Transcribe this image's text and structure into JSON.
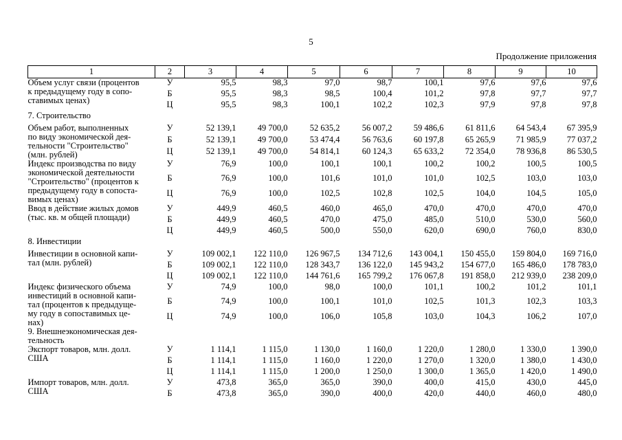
{
  "page": {
    "number": "5",
    "continuation": "Продолжение приложения"
  },
  "table": {
    "column_headers": [
      "1",
      "2",
      "3",
      "4",
      "5",
      "6",
      "7",
      "8",
      "9",
      "10"
    ],
    "rows": [
      {
        "type": "indicator",
        "name_lines": [
          "Объем услуг связи (процентов",
          "к предыдущему году в сопо-",
          "ставимых ценах)"
        ],
        "variants": [
          {
            "label": "У",
            "values": [
              "95,5",
              "98,3",
              "97,0",
              "98,7",
              "100,1",
              "97,6",
              "97,6",
              "97,6"
            ]
          },
          {
            "label": "Б",
            "values": [
              "95,5",
              "98,3",
              "98,5",
              "100,4",
              "101,2",
              "97,8",
              "97,7",
              "97,7"
            ]
          },
          {
            "label": "Ц",
            "values": [
              "95,5",
              "98,3",
              "100,1",
              "102,2",
              "102,3",
              "97,9",
              "97,8",
              "97,8"
            ]
          }
        ]
      },
      {
        "type": "section",
        "name_lines": [
          "7. Строительство"
        ]
      },
      {
        "type": "indicator",
        "name_lines": [
          "Объем работ, выполненных",
          "по виду экономической дея-",
          "тельности \"Строительство\"",
          "(млн. рублей)"
        ],
        "variants": [
          {
            "label": "У",
            "values": [
              "52 139,1",
              "49 700,0",
              "52 635,2",
              "56 007,2",
              "59 486,6",
              "61 811,6",
              "64 543,4",
              "67 395,9"
            ]
          },
          {
            "label": "Б",
            "values": [
              "52 139,1",
              "49 700,0",
              "53 474,4",
              "56 763,6",
              "60 197,8",
              "65 265,9",
              "71 985,9",
              "77 037,2"
            ]
          },
          {
            "label": "Ц",
            "values": [
              "52 139,1",
              "49 700,0",
              "54 814,1",
              "60 124,3",
              "65 633,2",
              "72 354,0",
              "78 936,8",
              "86 530,5"
            ]
          }
        ]
      },
      {
        "type": "indicator",
        "name_lines": [
          "Индекс производства по виду",
          "экономической деятельности",
          "\"Строительство\" (процентов к",
          "предыдущему году в сопоста-",
          "вимых ценах)"
        ],
        "variants": [
          {
            "label": "У",
            "values": [
              "76,9",
              "100,0",
              "100,1",
              "100,1",
              "100,2",
              "100,2",
              "100,5",
              "100,5"
            ]
          },
          {
            "label": "Б",
            "values": [
              "76,9",
              "100,0",
              "101,6",
              "101,0",
              "101,0",
              "102,5",
              "103,0",
              "103,0"
            ]
          },
          {
            "label": "Ц",
            "values": [
              "76,9",
              "100,0",
              "102,5",
              "102,8",
              "102,5",
              "104,0",
              "104,5",
              "105,0"
            ]
          }
        ]
      },
      {
        "type": "indicator",
        "name_lines": [
          "Ввод в действие жилых домов",
          "(тыс. кв. м общей площади)"
        ],
        "variants": [
          {
            "label": "У",
            "values": [
              "449,9",
              "460,5",
              "460,0",
              "465,0",
              "470,0",
              "470,0",
              "470,0",
              "470,0"
            ]
          },
          {
            "label": "Б",
            "values": [
              "449,9",
              "460,5",
              "470,0",
              "475,0",
              "485,0",
              "510,0",
              "530,0",
              "560,0"
            ]
          },
          {
            "label": "Ц",
            "values": [
              "449,9",
              "460,5",
              "500,0",
              "550,0",
              "620,0",
              "690,0",
              "760,0",
              "830,0"
            ]
          }
        ]
      },
      {
        "type": "section",
        "name_lines": [
          "8. Инвестиции"
        ]
      },
      {
        "type": "indicator",
        "name_lines": [
          "Инвестиции в основной капи-",
          "тал (млн. рублей)"
        ],
        "variants": [
          {
            "label": "У",
            "values": [
              "109 002,1",
              "122 110,0",
              "126 967,5",
              "134 712,6",
              "143 004,1",
              "150 455,0",
              "159 804,0",
              "169 716,0"
            ]
          },
          {
            "label": "Б",
            "values": [
              "109 002,1",
              "122 110,0",
              "128 343,7",
              "136 122,0",
              "145 943,2",
              "154 677,0",
              "165 486,0",
              "178 783,0"
            ]
          },
          {
            "label": "Ц",
            "values": [
              "109 002,1",
              "122 110,0",
              "144 761,6",
              "165 799,2",
              "176 067,8",
              "191 858,0",
              "212 939,0",
              "238 209,0"
            ]
          }
        ]
      },
      {
        "type": "indicator",
        "name_lines": [
          "Индекс физического объема",
          "инвестиций в основной капи-",
          "тал (процентов к предыдуще-",
          "му году в сопоставимых це-",
          "нах)"
        ],
        "variants": [
          {
            "label": "У",
            "values": [
              "74,9",
              "100,0",
              "98,0",
              "100,0",
              "101,1",
              "100,2",
              "101,2",
              "101,1"
            ]
          },
          {
            "label": "Б",
            "values": [
              "74,9",
              "100,0",
              "100,1",
              "101,0",
              "102,5",
              "101,3",
              "102,3",
              "103,3"
            ]
          },
          {
            "label": "Ц",
            "values": [
              "74,9",
              "100,0",
              "106,0",
              "105,8",
              "103,0",
              "104,3",
              "106,2",
              "107,0"
            ]
          }
        ]
      },
      {
        "type": "section",
        "name_lines": [
          "9. Внешнеэкономическая дея-",
          "тельность"
        ]
      },
      {
        "type": "indicator",
        "name_lines": [
          "Экспорт товаров, млн. долл.",
          "США"
        ],
        "variants": [
          {
            "label": "У",
            "values": [
              "1 114,1",
              "1 115,0",
              "1 130,0",
              "1 160,0",
              "1 220,0",
              "1 280,0",
              "1 330,0",
              "1 390,0"
            ]
          },
          {
            "label": "Б",
            "values": [
              "1 114,1",
              "1 115,0",
              "1 160,0",
              "1 220,0",
              "1 270,0",
              "1 320,0",
              "1 380,0",
              "1 430,0"
            ]
          },
          {
            "label": "Ц",
            "values": [
              "1 114,1",
              "1 115,0",
              "1 200,0",
              "1 250,0",
              "1 300,0",
              "1 365,0",
              "1 420,0",
              "1 490,0"
            ]
          }
        ]
      },
      {
        "type": "indicator",
        "name_lines": [
          "Импорт товаров, млн. долл.",
          "США"
        ],
        "variants": [
          {
            "label": "У",
            "values": [
              "473,8",
              "365,0",
              "365,0",
              "390,0",
              "400,0",
              "415,0",
              "430,0",
              "445,0"
            ]
          },
          {
            "label": "Б",
            "values": [
              "473,8",
              "365,0",
              "390,0",
              "400,0",
              "420,0",
              "440,0",
              "460,0",
              "480,0"
            ]
          }
        ]
      }
    ]
  }
}
